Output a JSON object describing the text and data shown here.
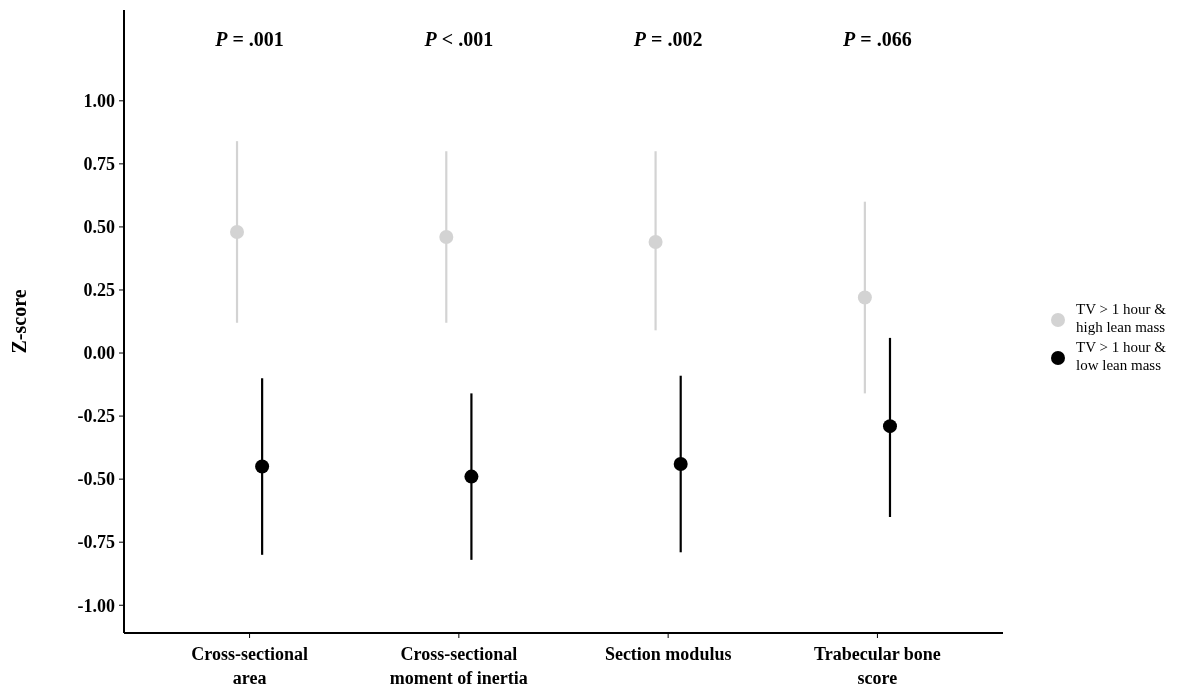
{
  "chart_data": {
    "type": "scatter",
    "ylabel": "Z-score",
    "categories": [
      "Cross-sectional area",
      "Cross-sectional moment of inertia",
      "Section modulus",
      "Trabecular bone score"
    ],
    "series": [
      {
        "name": "TV > 1 hour & high lean mass",
        "color": "#d3d3d3",
        "values": [
          0.48,
          0.46,
          0.44,
          0.22
        ],
        "errors": [
          [
            0.12,
            0.84
          ],
          [
            0.12,
            0.8
          ],
          [
            0.09,
            0.8
          ],
          [
            -0.16,
            0.6
          ]
        ]
      },
      {
        "name": "TV > 1 hour & low lean mass",
        "color": "#000000",
        "values": [
          -0.45,
          -0.49,
          -0.44,
          -0.29
        ],
        "errors": [
          [
            -0.8,
            -0.1
          ],
          [
            -0.82,
            -0.16
          ],
          [
            -0.79,
            -0.09
          ],
          [
            -0.65,
            0.06
          ]
        ]
      }
    ],
    "ylim": [
      -1.11,
      1.36
    ],
    "yticks": [
      {
        "value": -1,
        "label": "-1.00"
      },
      {
        "value": -0.75,
        "label": "-0.75"
      },
      {
        "value": -0.5,
        "label": "-0.50"
      },
      {
        "value": -0.25,
        "label": "-0.25"
      },
      {
        "value": 0,
        "label": "0.00"
      },
      {
        "value": 0.25,
        "label": "0.25"
      },
      {
        "value": 0.5,
        "label": "0.50"
      },
      {
        "value": 0.75,
        "label": "0.75"
      },
      {
        "value": 1,
        "label": "1.00"
      }
    ],
    "annotations": [
      "P = .001",
      "P < .001",
      "P = .002",
      "P = .066"
    ],
    "marker": "circle",
    "legend": "right",
    "grid": false
  }
}
